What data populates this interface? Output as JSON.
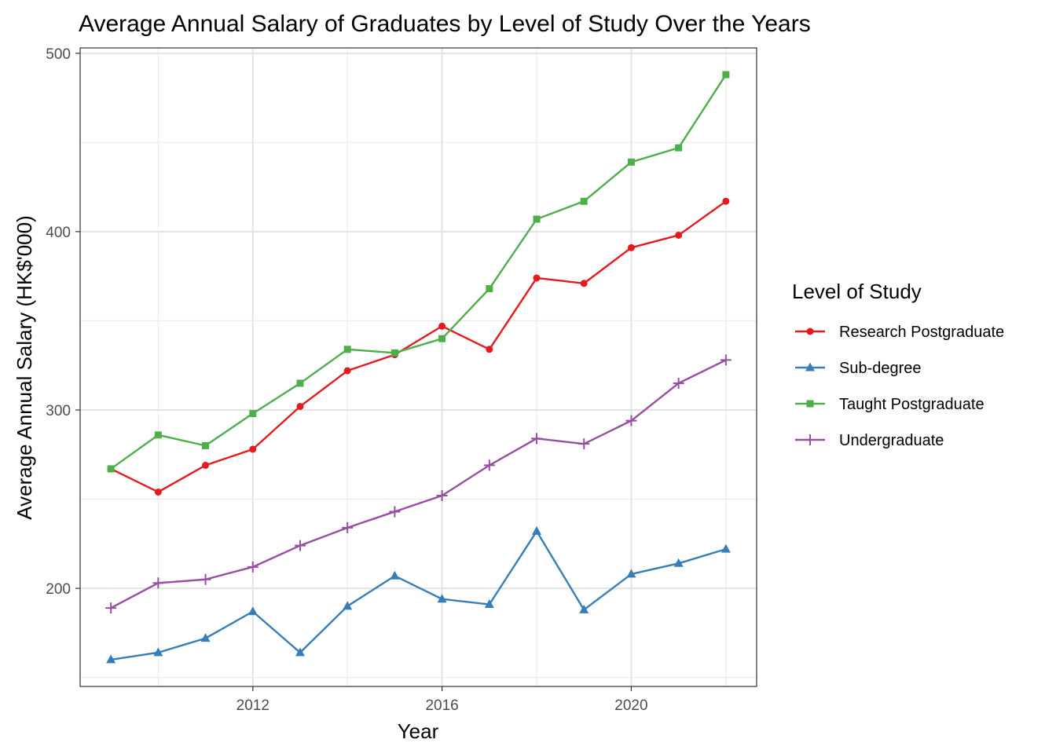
{
  "chart_data": {
    "type": "line",
    "title": "Average Annual Salary of Graduates by Level of Study Over the Years",
    "xlabel": "Year",
    "ylabel": "Average Annual Salary (HK$'000)",
    "x": [
      2009,
      2010,
      2011,
      2012,
      2013,
      2014,
      2015,
      2016,
      2017,
      2018,
      2019,
      2020,
      2021,
      2022
    ],
    "xlim": [
      2008.35,
      2022.65
    ],
    "ylim": [
      145,
      503
    ],
    "x_ticks": [
      2012,
      2016,
      2020
    ],
    "x_tick_labels": [
      "2012",
      "2016",
      "2020"
    ],
    "y_ticks": [
      200,
      300,
      400,
      500
    ],
    "y_tick_labels": [
      "200",
      "300",
      "400",
      "500"
    ],
    "grid": true,
    "legend": {
      "title": "Level of Study",
      "position": "right"
    },
    "series": [
      {
        "name": "Research Postgraduate",
        "color": "#e41a1c",
        "marker": "circle",
        "values": [
          267,
          254,
          269,
          278,
          302,
          322,
          331,
          347,
          334,
          374,
          371,
          391,
          398,
          417
        ]
      },
      {
        "name": "Sub-degree",
        "color": "#377eb8",
        "marker": "triangle",
        "values": [
          160,
          164,
          172,
          187,
          164,
          190,
          207,
          194,
          191,
          232,
          188,
          208,
          214,
          222
        ]
      },
      {
        "name": "Taught Postgraduate",
        "color": "#4daf4a",
        "marker": "square",
        "values": [
          267,
          286,
          280,
          298,
          315,
          334,
          332,
          340,
          368,
          407,
          417,
          439,
          447,
          488
        ]
      },
      {
        "name": "Undergraduate",
        "color": "#984ea3",
        "marker": "plus",
        "values": [
          189,
          203,
          205,
          212,
          224,
          234,
          243,
          252,
          269,
          284,
          281,
          294,
          315,
          328
        ]
      }
    ]
  }
}
